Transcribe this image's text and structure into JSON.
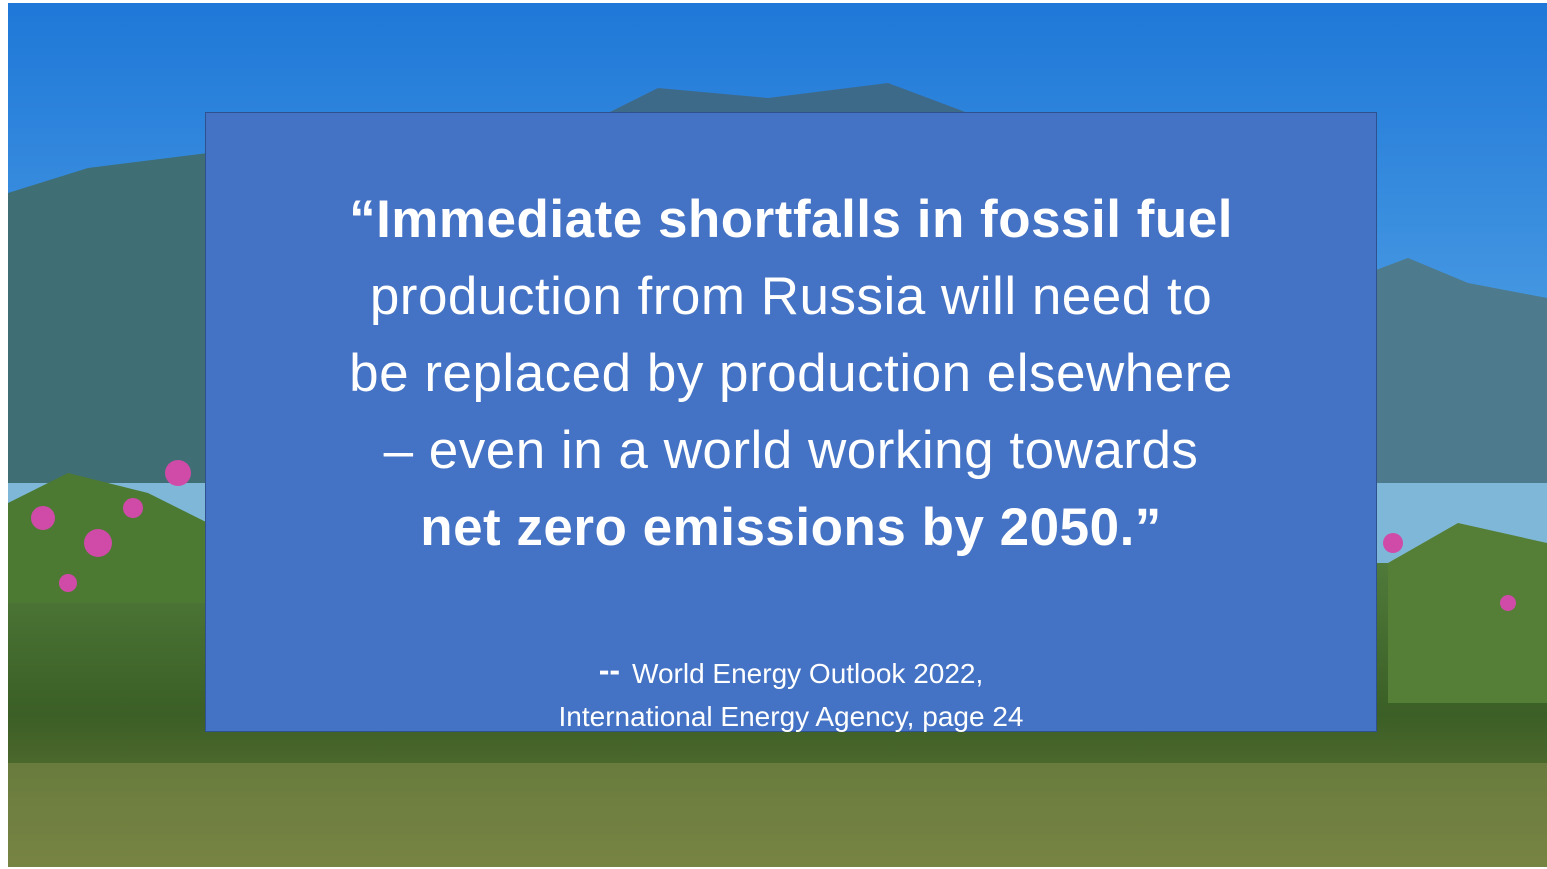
{
  "quote": {
    "lines": [
      "“Immediate shortfalls in fossil fuel",
      "production from Russia will need to",
      "be replaced by production elsewhere",
      "– even in a world working towards",
      "net zero emissions by 2050.”"
    ]
  },
  "attribution": {
    "dash": "--",
    "lines": [
      "World Energy Outlook 2022,",
      "International Energy Agency, page 24"
    ]
  }
}
